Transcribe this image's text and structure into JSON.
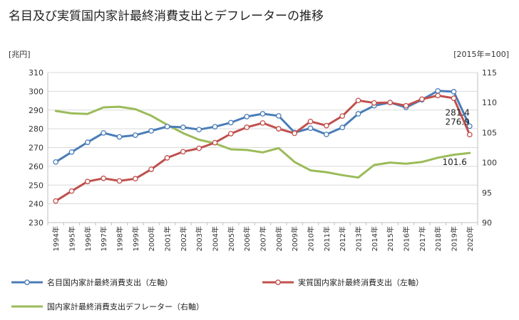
{
  "chart_data": {
    "type": "line",
    "title": "名目及び実質国内家計最終消費支出とデフレーターの推移",
    "ylabel_left": "[兆円]",
    "ylabel_right": "[2015年=100]",
    "ylim_left": [
      230,
      310
    ],
    "ylim_right": [
      90,
      115
    ],
    "yticks_left": [
      "230",
      "240",
      "250",
      "260",
      "270",
      "280",
      "290",
      "300",
      "310"
    ],
    "yticks_right": [
      "90",
      "95",
      "100",
      "105",
      "110",
      "115"
    ],
    "categories": [
      "1994年",
      "1995年",
      "1996年",
      "1997年",
      "1998年",
      "1999年",
      "2000年",
      "2001年",
      "2002年",
      "2003年",
      "2004年",
      "2005年",
      "2006年",
      "2007年",
      "2008年",
      "2009年",
      "2010年",
      "2011年",
      "2012年",
      "2013年",
      "2014年",
      "2015年",
      "2016年",
      "2017年",
      "2018年",
      "2019年",
      "2020年"
    ],
    "grid": "horizontal",
    "legend": "bottom",
    "series": [
      {
        "name": "名目国内家計最終消費支出（左軸）",
        "axis": "left",
        "color": "#4a7db8",
        "markers": true,
        "values": [
          262.3,
          267.6,
          272.8,
          277.8,
          275.7,
          276.6,
          278.9,
          281.2,
          280.8,
          279.6,
          281.1,
          283.3,
          286.5,
          288.0,
          286.9,
          278.0,
          280.3,
          277.0,
          280.7,
          288.0,
          292.3,
          294.0,
          291.4,
          295.5,
          300.2,
          299.8,
          281.4
        ],
        "end_label": "281.4"
      },
      {
        "name": "実質国内家計最終消費支出（左軸）",
        "axis": "left",
        "color": "#c0504d",
        "markers": true,
        "values": [
          241.5,
          246.8,
          251.9,
          253.6,
          252.2,
          253.4,
          258.4,
          264.5,
          267.8,
          269.6,
          272.6,
          277.4,
          280.8,
          283.1,
          280.0,
          277.6,
          283.9,
          281.7,
          286.8,
          295.1,
          293.8,
          294.0,
          292.3,
          295.8,
          297.7,
          296.3,
          276.9
        ],
        "end_label": "276.9"
      },
      {
        "name": "国内家計最終消費支出デフレーター（右軸）",
        "axis": "right",
        "color": "#9bbb59",
        "markers": false,
        "values": [
          108.6,
          108.2,
          108.1,
          109.2,
          109.3,
          108.9,
          107.8,
          106.3,
          104.9,
          103.8,
          103.2,
          102.2,
          102.1,
          101.7,
          102.4,
          100.1,
          98.7,
          98.4,
          97.9,
          97.5,
          99.6,
          100.0,
          99.8,
          100.1,
          100.8,
          101.3,
          101.6
        ],
        "end_label": "101.6"
      }
    ]
  }
}
